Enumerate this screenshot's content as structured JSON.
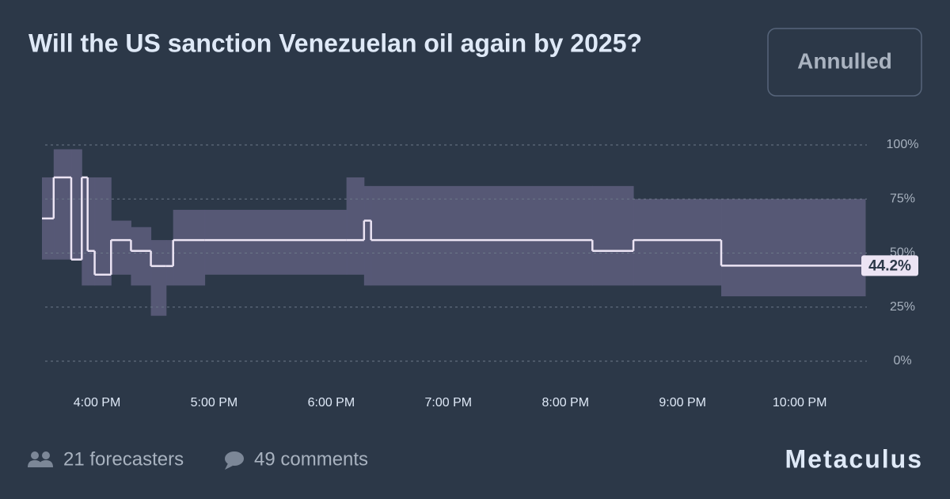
{
  "chart_data": {
    "type": "step-band",
    "title": "Will the US sanction Venezuelan oil again by 2025?",
    "status": "Annulled",
    "x": [
      15.53,
      15.63,
      15.78,
      15.87,
      15.92,
      15.98,
      16.12,
      16.29,
      16.46,
      16.59,
      16.65,
      16.92,
      18.13,
      18.28,
      18.34,
      20.23,
      20.58,
      21.33
    ],
    "series": [
      {
        "name": "median",
        "color": "#ece4f4",
        "values": [
          66,
          85,
          47,
          85,
          51,
          40,
          56,
          51,
          44,
          44,
          56,
          56,
          56,
          65,
          56,
          51,
          56,
          44.2
        ],
        "value_labels": [
          null,
          null,
          null,
          null,
          null,
          null,
          null,
          null,
          null,
          null,
          null,
          null,
          null,
          null,
          null,
          null,
          null,
          "44.2%"
        ]
      },
      {
        "name": "lower",
        "color": "#595a78",
        "values": [
          47,
          47,
          47,
          35,
          35,
          35,
          40,
          35,
          21,
          35,
          35,
          40,
          40,
          35,
          35,
          35,
          35,
          30
        ]
      },
      {
        "name": "upper",
        "color": "#595a78",
        "values": [
          85,
          98,
          98,
          85,
          85,
          85,
          65,
          62,
          56,
          56,
          70,
          70,
          85,
          81,
          81,
          81,
          75,
          75
        ]
      }
    ],
    "xlim": [
      15.53,
      22.56
    ],
    "xticks": [
      {
        "value": 16,
        "label": "4:00 PM"
      },
      {
        "value": 17,
        "label": "5:00 PM"
      },
      {
        "value": 18,
        "label": "6:00 PM"
      },
      {
        "value": 19,
        "label": "7:00 PM"
      },
      {
        "value": 20,
        "label": "8:00 PM"
      },
      {
        "value": 21,
        "label": "9:00 PM"
      },
      {
        "value": 22,
        "label": "10:00 PM"
      }
    ],
    "ylim": [
      0,
      100
    ],
    "yticks": [
      {
        "value": 0,
        "label": "0%"
      },
      {
        "value": 25,
        "label": "25%"
      },
      {
        "value": 50,
        "label": "50%"
      },
      {
        "value": 75,
        "label": "75%"
      },
      {
        "value": 100,
        "label": "100%"
      }
    ],
    "grid": true
  },
  "footer": {
    "forecasters": "21 forecasters",
    "comments": "49 comments",
    "brand": "Metaculus"
  }
}
